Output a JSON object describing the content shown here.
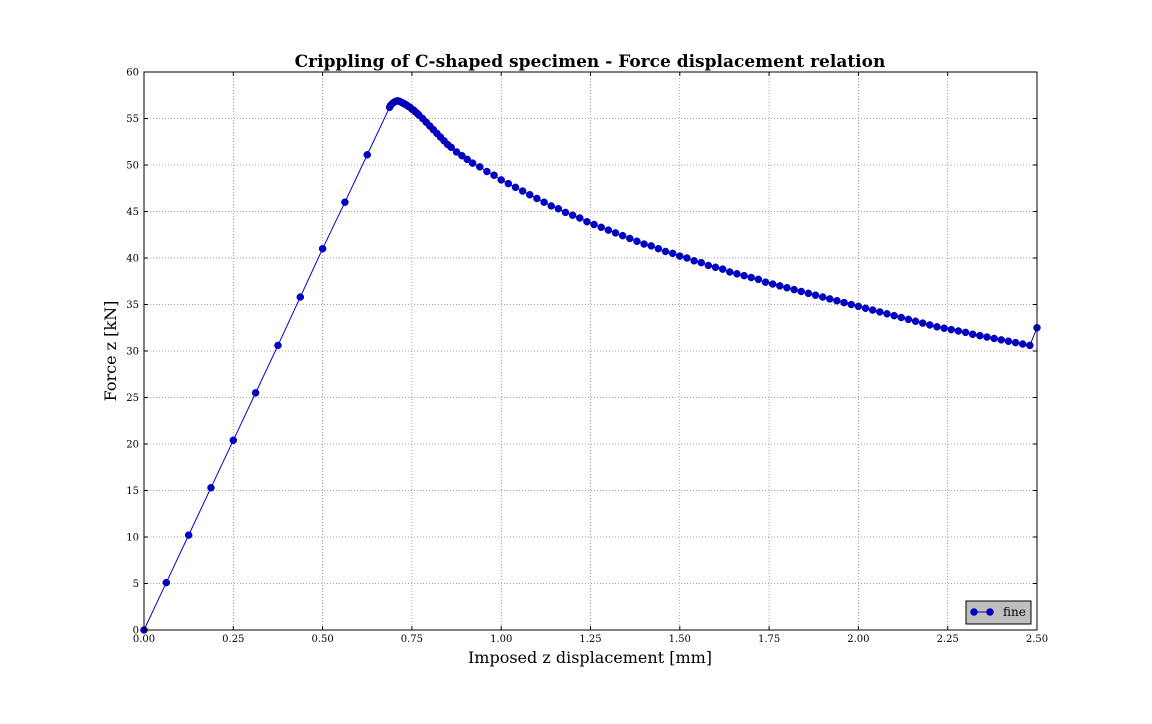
{
  "chart_data": {
    "type": "line",
    "title": "Crippling of C-shaped specimen - Force displacement relation",
    "xlabel": "Imposed z displacement [mm]",
    "ylabel": "Force z [kN]",
    "xlim": [
      0,
      2.5
    ],
    "ylim": [
      0,
      60
    ],
    "grid": true,
    "legend_position": "bottom-right",
    "x_ticks": [
      "0.00",
      "0.25",
      "0.50",
      "0.75",
      "1.00",
      "1.25",
      "1.50",
      "1.75",
      "2.00",
      "2.25",
      "2.50"
    ],
    "y_ticks": [
      "0",
      "5",
      "10",
      "15",
      "20",
      "25",
      "30",
      "35",
      "40",
      "45",
      "50",
      "55",
      "60"
    ],
    "series": [
      {
        "name": "fine",
        "color": "#0000cc",
        "marker": "circle",
        "x": [
          0,
          0.0625,
          0.125,
          0.1875,
          0.25,
          0.3125,
          0.375,
          0.4375,
          0.5,
          0.5625,
          0.625,
          0.6875,
          0.69,
          0.695,
          0.7,
          0.705,
          0.71,
          0.715,
          0.72,
          0.725,
          0.73,
          0.735,
          0.74,
          0.745,
          0.75,
          0.755,
          0.76,
          0.765,
          0.77,
          0.78,
          0.79,
          0.8,
          0.81,
          0.82,
          0.83,
          0.84,
          0.85,
          0.86,
          0.875,
          0.89,
          0.905,
          0.92,
          0.94,
          0.96,
          0.98,
          1.0,
          1.02,
          1.04,
          1.06,
          1.08,
          1.1,
          1.12,
          1.14,
          1.16,
          1.18,
          1.2,
          1.22,
          1.24,
          1.26,
          1.28,
          1.3,
          1.32,
          1.34,
          1.36,
          1.38,
          1.4,
          1.42,
          1.44,
          1.46,
          1.48,
          1.5,
          1.52,
          1.54,
          1.56,
          1.58,
          1.6,
          1.62,
          1.64,
          1.66,
          1.68,
          1.7,
          1.72,
          1.74,
          1.76,
          1.78,
          1.8,
          1.82,
          1.84,
          1.86,
          1.88,
          1.9,
          1.92,
          1.94,
          1.96,
          1.98,
          2.0,
          2.02,
          2.04,
          2.06,
          2.08,
          2.1,
          2.12,
          2.14,
          2.16,
          2.18,
          2.2,
          2.22,
          2.24,
          2.26,
          2.28,
          2.3,
          2.32,
          2.34,
          2.36,
          2.38,
          2.4,
          2.42,
          2.44,
          2.46,
          2.48,
          2.5
        ],
        "y": [
          0,
          5.1,
          10.2,
          15.3,
          20.4,
          25.5,
          30.6,
          35.8,
          41.0,
          46.0,
          51.1,
          56.2,
          56.4,
          56.6,
          56.75,
          56.85,
          56.9,
          56.85,
          56.75,
          56.65,
          56.55,
          56.45,
          56.3,
          56.2,
          56.0,
          55.9,
          55.7,
          55.55,
          55.35,
          55.0,
          54.6,
          54.2,
          53.8,
          53.4,
          53.0,
          52.6,
          52.2,
          51.9,
          51.4,
          51.0,
          50.6,
          50.2,
          49.8,
          49.3,
          48.9,
          48.4,
          48.0,
          47.6,
          47.2,
          46.8,
          46.4,
          46.0,
          45.6,
          45.3,
          44.9,
          44.6,
          44.3,
          43.9,
          43.6,
          43.3,
          43.0,
          42.7,
          42.4,
          42.1,
          41.8,
          41.5,
          41.3,
          41.0,
          40.7,
          40.5,
          40.2,
          40.0,
          39.7,
          39.5,
          39.2,
          39.0,
          38.8,
          38.5,
          38.3,
          38.1,
          37.9,
          37.7,
          37.4,
          37.2,
          37.0,
          36.8,
          36.6,
          36.4,
          36.2,
          36.0,
          35.8,
          35.6,
          35.4,
          35.2,
          35.0,
          34.8,
          34.6,
          34.4,
          34.2,
          34.0,
          33.8,
          33.6,
          33.4,
          33.2,
          33.0,
          32.8,
          32.6,
          32.45,
          32.3,
          32.15,
          32.0,
          31.8,
          31.65,
          31.5,
          31.35,
          31.2,
          31.05,
          30.9,
          30.75,
          30.6,
          32.5
        ]
      }
    ]
  }
}
